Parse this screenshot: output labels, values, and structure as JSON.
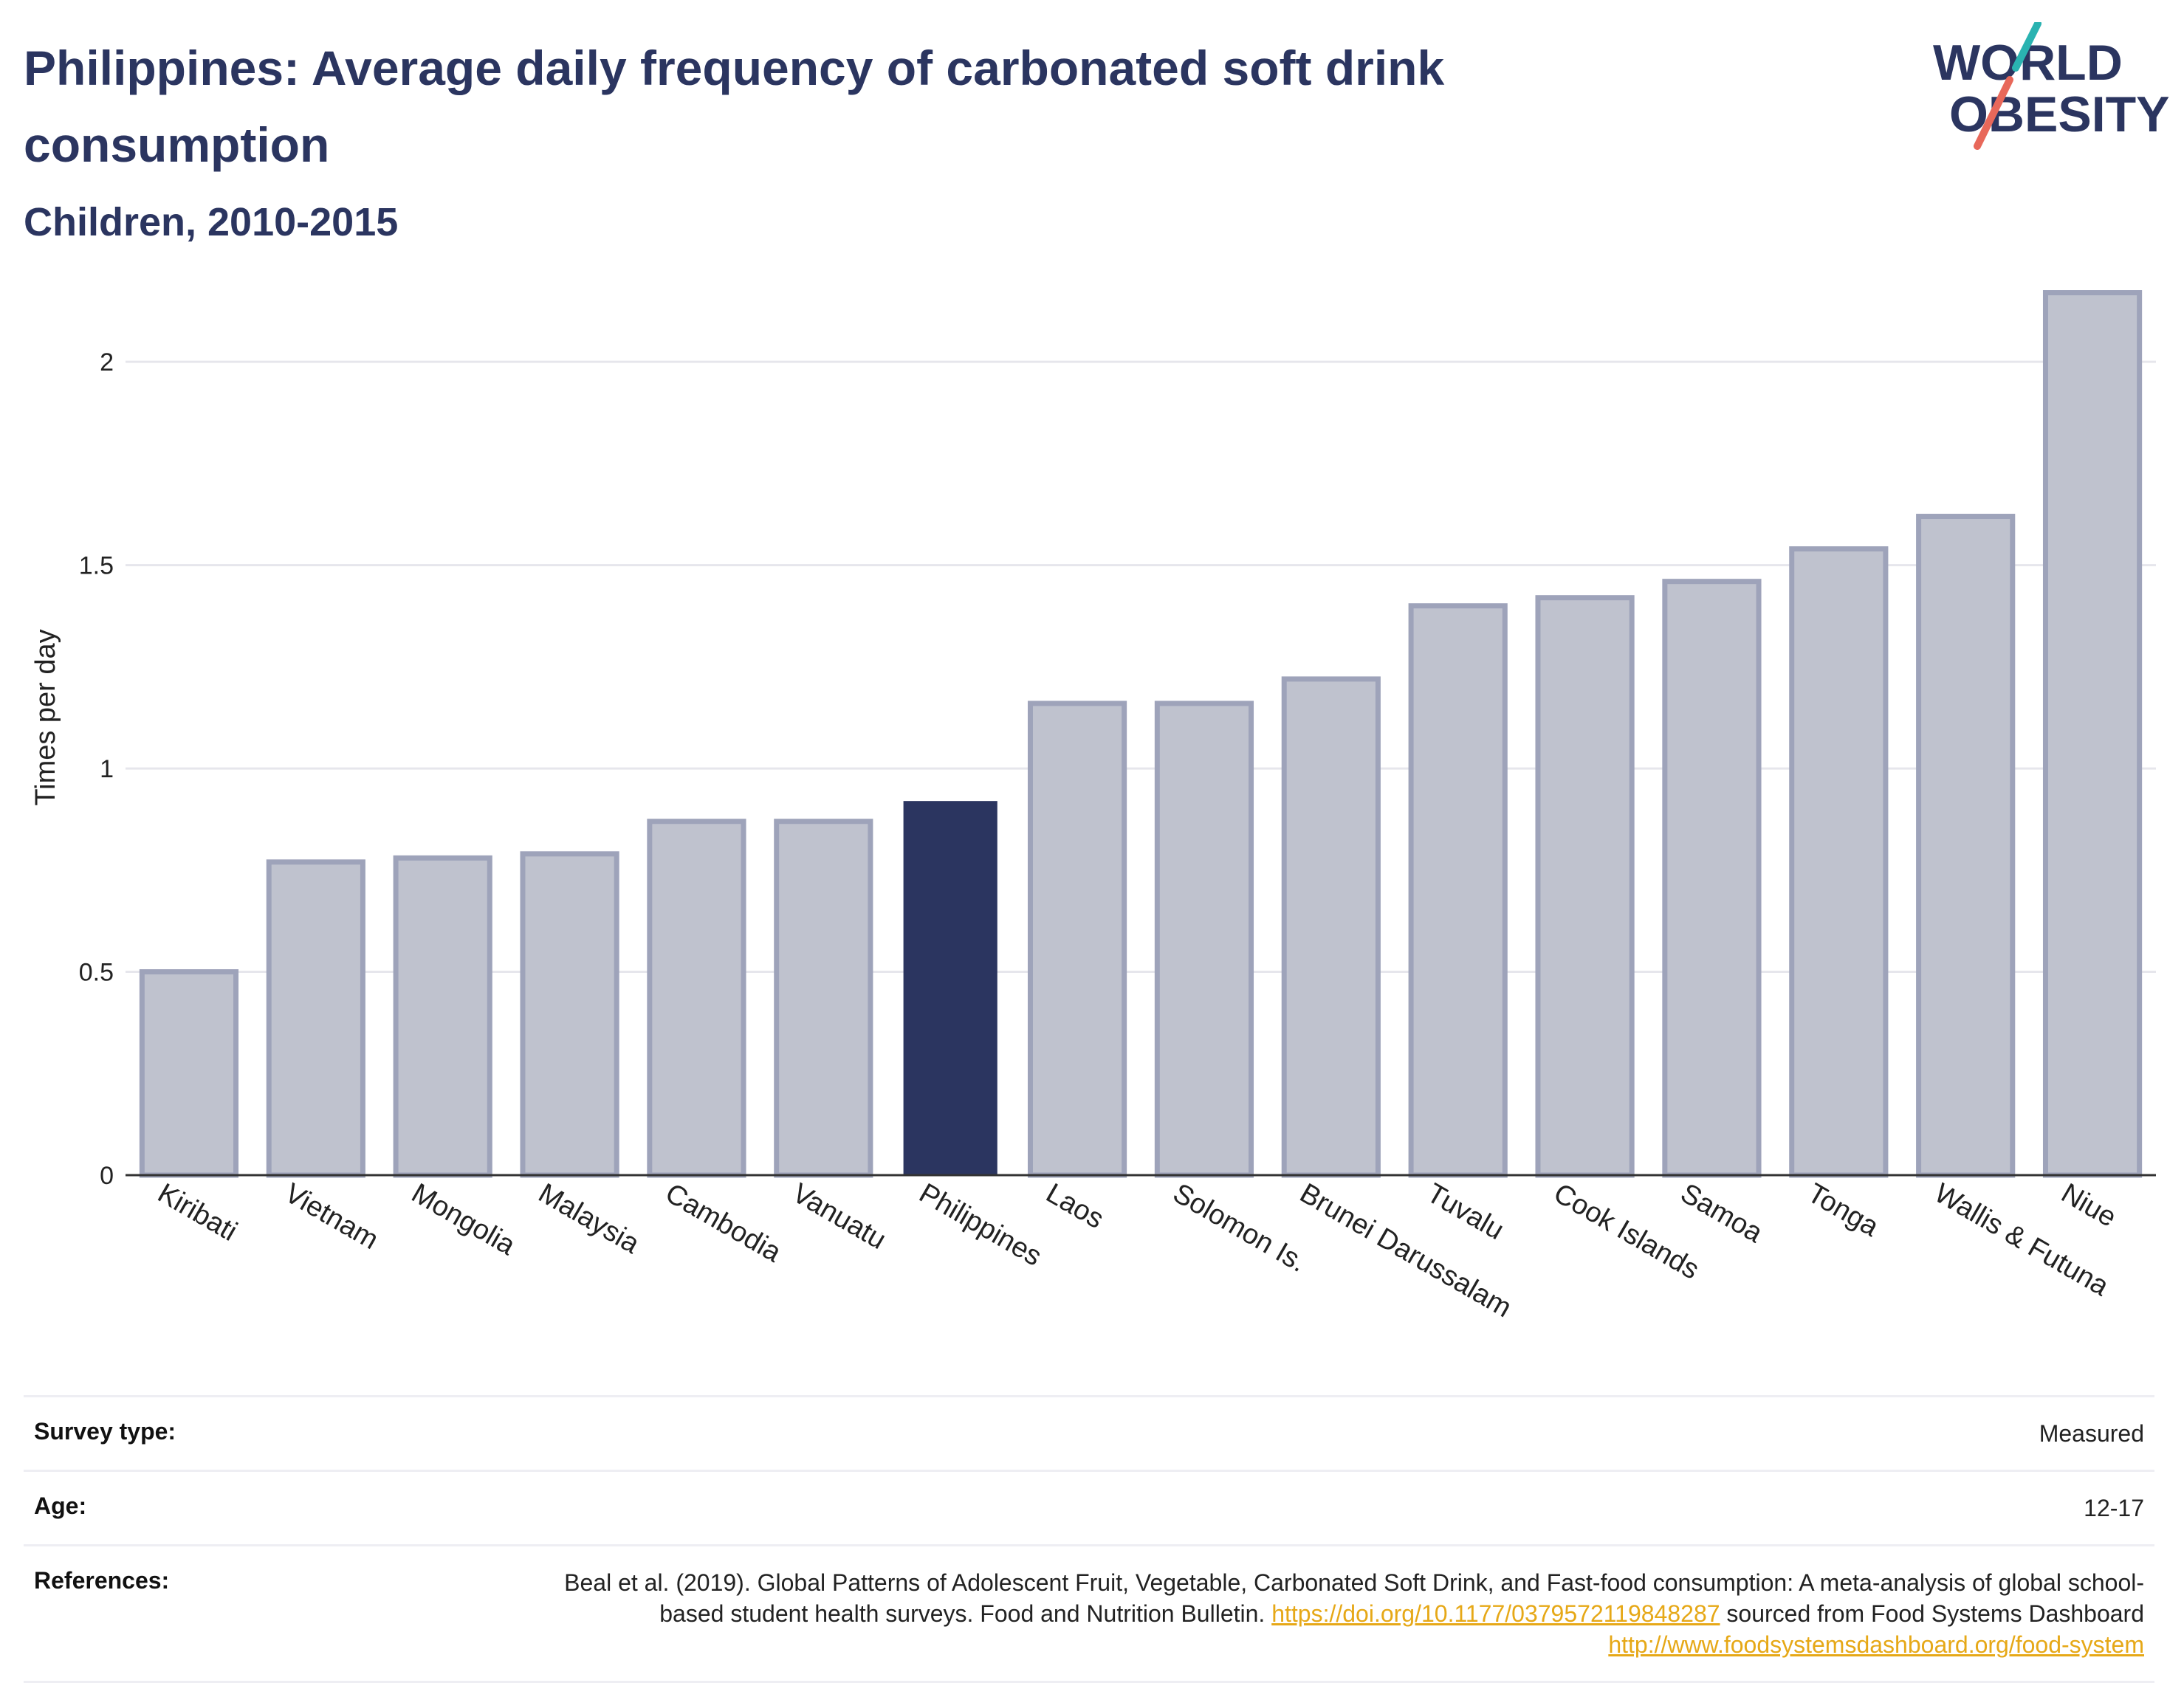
{
  "header": {
    "title": "Philippines: Average daily frequency of carbonated soft drink consumption",
    "subtitle": "Children, 2010-2015"
  },
  "logo": {
    "line1": "WORLD",
    "line2": "OBESITY",
    "text_color": "#2b3560",
    "accent_teal": "#2ab3b1",
    "accent_red": "#e8685a"
  },
  "colors": {
    "highlight_bar": "#2b3560",
    "other_bar": "#bfc2ce",
    "other_bar_outline": "#9ea3ba",
    "gridline": "#e6e6ec",
    "axis": "#333333"
  },
  "chart_data": {
    "type": "bar",
    "title": "",
    "xlabel": "",
    "ylabel": "Times per day",
    "ylim": [
      0,
      2.2
    ],
    "yticks": [
      0,
      0.5,
      1,
      1.5,
      2
    ],
    "ytick_labels": [
      "0",
      "0.5",
      "1",
      "1.5",
      "2"
    ],
    "grid": true,
    "highlight": "Philippines",
    "categories": [
      "Kiribati",
      "Vietnam",
      "Mongolia",
      "Malaysia",
      "Cambodia",
      "Vanuatu",
      "Philippines",
      "Laos",
      "Solomon Is.",
      "Brunei Darussalam",
      "Tuvalu",
      "Cook Islands",
      "Samoa",
      "Tonga",
      "Wallis & Futuna",
      "Niue"
    ],
    "values": [
      0.5,
      0.77,
      0.78,
      0.79,
      0.87,
      0.87,
      0.92,
      1.16,
      1.16,
      1.22,
      1.4,
      1.42,
      1.46,
      1.54,
      1.62,
      2.17
    ]
  },
  "meta": {
    "survey_type_label": "Survey type:",
    "survey_type_value": "Measured",
    "age_label": "Age:",
    "age_value": "12-17",
    "references_label": "References:",
    "references_text1": "Beal et al. (2019). Global Patterns of Adolescent Fruit, Vegetable, Carbonated Soft Drink, and Fast-food consumption: A meta-analysis of global school-based student health surveys. Food and Nutrition Bulletin. ",
    "references_link1": "https://doi.org/10.1177/0379572119848287",
    "references_text2": " sourced from Food Systems Dashboard ",
    "references_link2": "http://www.foodsystemsdashboard.org/food-system"
  }
}
